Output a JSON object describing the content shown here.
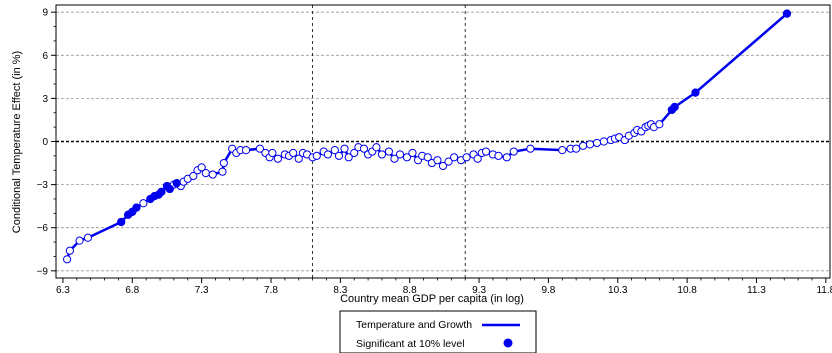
{
  "chart_data": {
    "type": "line",
    "xlabel": "Country mean GDP per capita (in log)",
    "ylabel": "Conditional Temperature Effect (in %)",
    "xlim": [
      6.25,
      11.83
    ],
    "ylim": [
      -9.5,
      9.5
    ],
    "x_ticks": [
      6.3,
      6.8,
      7.3,
      7.8,
      8.3,
      8.8,
      9.3,
      9.8,
      10.3,
      10.8,
      11.3,
      11.8
    ],
    "y_ticks": [
      -9,
      -6,
      -3,
      0,
      3,
      6,
      9
    ],
    "x_tick_labels": [
      "6.3",
      "6.8",
      "7.3",
      "7.8",
      "8.3",
      "8.8",
      "9.3",
      "9.8",
      "10.3",
      "10.8",
      "11.3",
      "11.8"
    ],
    "y_tick_labels": [
      "−9",
      "−6",
      "−3",
      "0",
      "3",
      "6",
      "9"
    ],
    "vertical_reference_lines": [
      8.1,
      9.2
    ],
    "horizontal_reference_line": 0,
    "grid": "horizontal dashed",
    "legend_position": "bottom",
    "colors": {
      "line": "#0000ee",
      "marker_fill": "#0000ee",
      "marker_open_fill": "#ffffff",
      "grid": "#999999"
    },
    "series": [
      {
        "name": "Temperature and Growth",
        "x": [
          6.33,
          6.35,
          6.42,
          6.48,
          6.72,
          6.77,
          6.8,
          6.83,
          6.88,
          6.93,
          6.96,
          6.99,
          7.01,
          7.05,
          7.07,
          7.1,
          7.12,
          7.15,
          7.17,
          7.2,
          7.24,
          7.27,
          7.3,
          7.33,
          7.38,
          7.45,
          7.46,
          7.52,
          7.55,
          7.58,
          7.62,
          7.72,
          7.76,
          7.79,
          7.81,
          7.85,
          7.9,
          7.93,
          7.96,
          8.0,
          8.03,
          8.06,
          8.1,
          8.13,
          8.18,
          8.21,
          8.26,
          8.29,
          8.33,
          8.36,
          8.4,
          8.43,
          8.47,
          8.5,
          8.53,
          8.56,
          8.6,
          8.65,
          8.69,
          8.73,
          8.78,
          8.82,
          8.86,
          8.89,
          8.93,
          8.96,
          9.0,
          9.04,
          9.08,
          9.12,
          9.17,
          9.21,
          9.26,
          9.29,
          9.32,
          9.35,
          9.4,
          9.44,
          9.5,
          9.55,
          9.67,
          9.9,
          9.96,
          10.0,
          10.05,
          10.1,
          10.15,
          10.2,
          10.25,
          10.28,
          10.31,
          10.35,
          10.38,
          10.42,
          10.44,
          10.47,
          10.5,
          10.52,
          10.54,
          10.56,
          10.6,
          10.69,
          10.71,
          10.86,
          11.52
        ],
        "y": [
          -8.2,
          -7.6,
          -6.9,
          -6.7,
          -5.6,
          -5.1,
          -4.9,
          -4.6,
          -4.3,
          -4.0,
          -3.8,
          -3.7,
          -3.5,
          -3.1,
          -3.3,
          -3.0,
          -2.9,
          -3.1,
          -2.8,
          -2.6,
          -2.4,
          -2.0,
          -1.8,
          -2.2,
          -2.3,
          -2.1,
          -1.5,
          -0.5,
          -0.8,
          -0.6,
          -0.6,
          -0.5,
          -0.8,
          -1.1,
          -0.8,
          -1.2,
          -0.9,
          -1.0,
          -0.8,
          -1.2,
          -0.8,
          -0.9,
          -1.1,
          -1.0,
          -0.7,
          -0.9,
          -0.6,
          -1.0,
          -0.5,
          -1.1,
          -0.8,
          -0.4,
          -0.5,
          -0.9,
          -0.7,
          -0.4,
          -0.9,
          -0.7,
          -1.2,
          -0.9,
          -1.1,
          -0.8,
          -1.3,
          -1.0,
          -1.1,
          -1.5,
          -1.3,
          -1.7,
          -1.4,
          -1.1,
          -1.3,
          -1.1,
          -0.9,
          -1.2,
          -0.8,
          -0.7,
          -0.9,
          -1.0,
          -1.1,
          -0.7,
          -0.5,
          -0.6,
          -0.5,
          -0.5,
          -0.3,
          -0.2,
          -0.1,
          0.0,
          0.1,
          0.2,
          0.3,
          0.1,
          0.4,
          0.6,
          0.8,
          0.7,
          1.0,
          1.1,
          1.2,
          1.0,
          1.2,
          2.2,
          2.4,
          3.4,
          8.9
        ]
      },
      {
        "name": "Significant at 10% level",
        "marker_only": true,
        "x": [
          6.72,
          6.77,
          6.8,
          6.83,
          6.93,
          6.96,
          6.99,
          7.01,
          7.05,
          7.07,
          7.12,
          10.69,
          10.71,
          10.86,
          11.52
        ],
        "y": [
          -5.6,
          -5.1,
          -4.9,
          -4.6,
          -4.0,
          -3.8,
          -3.7,
          -3.5,
          -3.1,
          -3.3,
          -2.9,
          2.2,
          2.4,
          3.4,
          8.9
        ]
      }
    ]
  }
}
